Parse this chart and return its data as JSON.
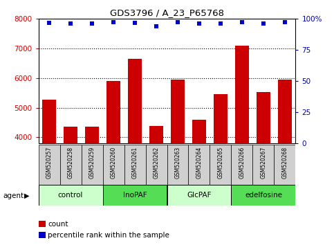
{
  "title": "GDS3796 / A_23_P65768",
  "samples": [
    "GSM520257",
    "GSM520258",
    "GSM520259",
    "GSM520260",
    "GSM520261",
    "GSM520262",
    "GSM520263",
    "GSM520264",
    "GSM520265",
    "GSM520266",
    "GSM520267",
    "GSM520268"
  ],
  "counts": [
    5270,
    4370,
    4360,
    5900,
    6630,
    4380,
    5950,
    4600,
    5450,
    7080,
    5530,
    5940
  ],
  "percentile_values": [
    96.5,
    96.0,
    96.0,
    97.0,
    96.3,
    93.5,
    97.0,
    96.0,
    96.0,
    97.0,
    96.0,
    97.0
  ],
  "groups": [
    {
      "label": "control",
      "color": "#ccffcc",
      "start": 0,
      "end": 2
    },
    {
      "label": "InoPAF",
      "color": "#55dd55",
      "start": 3,
      "end": 5
    },
    {
      "label": "GlcPAF",
      "color": "#ccffcc",
      "start": 6,
      "end": 8
    },
    {
      "label": "edelfosine",
      "color": "#55dd55",
      "start": 9,
      "end": 11
    }
  ],
  "bar_color": "#cc0000",
  "dot_color": "#0000cc",
  "ylim_left": [
    3800,
    8000
  ],
  "ylim_right": [
    0,
    100
  ],
  "yticks_left": [
    4000,
    5000,
    6000,
    7000,
    8000
  ],
  "yticks_right": [
    0,
    25,
    50,
    75,
    100
  ],
  "bar_bottom": 3800,
  "background_color": "#ffffff",
  "sample_box_color": "#d0d0d0",
  "legend_count_color": "#cc0000",
  "legend_pct_color": "#0000cc",
  "left_tick_color": "#cc0000",
  "right_tick_color": "#0000aa"
}
